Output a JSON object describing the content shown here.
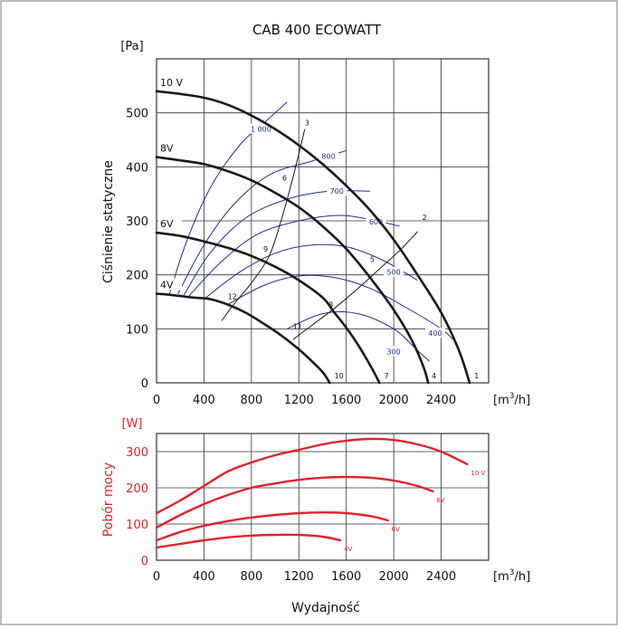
{
  "chart_data": [
    {
      "type": "line",
      "title": "CAB 400 ECOWATT",
      "ylabel": "Ciśnienie statyczne",
      "y_unit": "[Pa]",
      "x_unit_base": "[m",
      "x_unit_sup": "3",
      "x_unit_end": "/h]",
      "xlim": [
        0,
        2800
      ],
      "ylim": [
        0,
        600
      ],
      "x_ticks": [
        "0",
        "400",
        "800",
        "1200",
        "1600",
        "2000",
        "2400"
      ],
      "y_ticks": [
        "0",
        "100",
        "200",
        "300",
        "400",
        "500"
      ],
      "grid": true,
      "fan_curves": [
        {
          "name": "10 V",
          "label_at": [
            0,
            540
          ],
          "points": [
            [
              0,
              540
            ],
            [
              200,
              535
            ],
            [
              400,
              528
            ],
            [
              600,
              515
            ],
            [
              800,
              495
            ],
            [
              1000,
              470
            ],
            [
              1200,
              440
            ],
            [
              1400,
              405
            ],
            [
              1600,
              365
            ],
            [
              1800,
              320
            ],
            [
              2000,
              265
            ],
            [
              2200,
              200
            ],
            [
              2400,
              130
            ],
            [
              2550,
              60
            ],
            [
              2640,
              0
            ]
          ]
        },
        {
          "name": "8V",
          "label_at": [
            0,
            418
          ],
          "points": [
            [
              0,
              418
            ],
            [
              200,
              412
            ],
            [
              400,
              405
            ],
            [
              600,
              392
            ],
            [
              800,
              375
            ],
            [
              1000,
              352
            ],
            [
              1200,
              325
            ],
            [
              1400,
              290
            ],
            [
              1600,
              248
            ],
            [
              1800,
              195
            ],
            [
              2000,
              135
            ],
            [
              2150,
              80
            ],
            [
              2250,
              30
            ],
            [
              2290,
              0
            ]
          ]
        },
        {
          "name": "6V",
          "label_at": [
            0,
            278
          ],
          "points": [
            [
              0,
              278
            ],
            [
              200,
              272
            ],
            [
              400,
              262
            ],
            [
              600,
              250
            ],
            [
              800,
              235
            ],
            [
              1000,
              215
            ],
            [
              1200,
              190
            ],
            [
              1400,
              158
            ],
            [
              1500,
              130
            ],
            [
              1600,
              102
            ],
            [
              1700,
              70
            ],
            [
              1800,
              33
            ],
            [
              1880,
              0
            ]
          ]
        },
        {
          "name": "4V",
          "label_at": [
            0,
            165
          ],
          "points": [
            [
              0,
              165
            ],
            [
              150,
              162
            ],
            [
              300,
              158
            ],
            [
              450,
              155
            ],
            [
              600,
              145
            ],
            [
              750,
              130
            ],
            [
              900,
              110
            ],
            [
              1050,
              88
            ],
            [
              1200,
              62
            ],
            [
              1300,
              42
            ],
            [
              1400,
              20
            ],
            [
              1460,
              0
            ]
          ]
        }
      ],
      "system_curves": [
        {
          "points": [
            [
              550,
              115
            ],
            [
              650,
              145
            ],
            [
              800,
              185
            ],
            [
              950,
              235
            ],
            [
              1050,
              300
            ],
            [
              1150,
              380
            ],
            [
              1250,
              470
            ]
          ]
        },
        {
          "points": [
            [
              1150,
              80
            ],
            [
              1300,
              105
            ],
            [
              1500,
              138
            ],
            [
              1700,
              175
            ],
            [
              1900,
              215
            ],
            [
              2050,
              245
            ],
            [
              2200,
              280
            ]
          ]
        }
      ],
      "points": [
        {
          "label": "1",
          "at": [
            2680,
            8
          ]
        },
        {
          "label": "2",
          "at": [
            2240,
            302
          ]
        },
        {
          "label": "3",
          "at": [
            1250,
            477
          ]
        },
        {
          "label": "4",
          "at": [
            2320,
            8
          ]
        },
        {
          "label": "5",
          "at": [
            1800,
            224
          ]
        },
        {
          "label": "6",
          "at": [
            1060,
            375
          ]
        },
        {
          "label": "7",
          "at": [
            1920,
            8
          ]
        },
        {
          "label": "8",
          "at": [
            1450,
            140
          ]
        },
        {
          "label": "9",
          "at": [
            900,
            243
          ]
        },
        {
          "label": "10",
          "at": [
            1500,
            8
          ]
        },
        {
          "label": "11",
          "at": [
            1150,
            100
          ]
        },
        {
          "label": "12",
          "at": [
            600,
            155
          ]
        }
      ],
      "rpm_curves": [
        {
          "name": "1 000",
          "label_at": [
            880,
            470
          ],
          "points": [
            [
              110,
              165
            ],
            [
              250,
              260
            ],
            [
              450,
              360
            ],
            [
              700,
              440
            ],
            [
              900,
              480
            ],
            [
              1100,
              520
            ]
          ]
        },
        {
          "name": "800",
          "label_at": [
            1450,
            420
          ],
          "points": [
            [
              180,
              165
            ],
            [
              400,
              255
            ],
            [
              650,
              330
            ],
            [
              950,
              385
            ],
            [
              1300,
              410
            ],
            [
              1600,
              430
            ]
          ]
        },
        {
          "name": "700",
          "label_at": [
            1520,
            355
          ],
          "points": [
            [
              230,
              162
            ],
            [
              450,
              240
            ],
            [
              750,
              305
            ],
            [
              1100,
              340
            ],
            [
              1450,
              355
            ],
            [
              1800,
              355
            ]
          ]
        },
        {
          "name": "600",
          "label_at": [
            1850,
            298
          ],
          "points": [
            [
              270,
              160
            ],
            [
              550,
              225
            ],
            [
              850,
              275
            ],
            [
              1200,
              300
            ],
            [
              1550,
              310
            ],
            [
              1850,
              300
            ],
            [
              2050,
              290
            ]
          ]
        },
        {
          "name": "500",
          "label_at": [
            2000,
            205
          ],
          "points": [
            [
              400,
              155
            ],
            [
              700,
              205
            ],
            [
              1000,
              240
            ],
            [
              1300,
              255
            ],
            [
              1600,
              252
            ],
            [
              1900,
              228
            ],
            [
              2200,
              190
            ]
          ]
        },
        {
          "name": "400",
          "label_at": [
            2350,
            92
          ],
          "points": [
            [
              600,
              145
            ],
            [
              900,
              180
            ],
            [
              1200,
              198
            ],
            [
              1500,
              195
            ],
            [
              1800,
              175
            ],
            [
              2100,
              140
            ],
            [
              2400,
              100
            ],
            [
              2500,
              80
            ]
          ]
        },
        {
          "name": "300",
          "label_at": [
            2000,
            58
          ],
          "points": [
            [
              1100,
              100
            ],
            [
              1400,
              128
            ],
            [
              1700,
              128
            ],
            [
              2000,
              100
            ],
            [
              2200,
              60
            ],
            [
              2300,
              40
            ]
          ]
        }
      ]
    },
    {
      "type": "line",
      "ylabel": "Pobór mocy",
      "y_unit": "[W]",
      "x_unit_base": "[m",
      "x_unit_sup": "3",
      "x_unit_end": "/h]",
      "xlabel": "Wydajność",
      "xlim": [
        0,
        2800
      ],
      "ylim": [
        0,
        350
      ],
      "x_ticks": [
        "0",
        "400",
        "800",
        "1200",
        "1600",
        "2000",
        "2400"
      ],
      "y_ticks": [
        "0",
        "100",
        "200",
        "300"
      ],
      "grid": true,
      "series": [
        {
          "name": "10 V",
          "points": [
            [
              0,
              130
            ],
            [
              200,
              165
            ],
            [
              400,
              205
            ],
            [
              600,
              245
            ],
            [
              800,
              270
            ],
            [
              1000,
              290
            ],
            [
              1200,
              305
            ],
            [
              1400,
              320
            ],
            [
              1600,
              330
            ],
            [
              1800,
              335
            ],
            [
              2000,
              332
            ],
            [
              2200,
              320
            ],
            [
              2400,
              300
            ],
            [
              2620,
              265
            ]
          ]
        },
        {
          "name": "8V",
          "points": [
            [
              0,
              90
            ],
            [
              200,
              125
            ],
            [
              400,
              155
            ],
            [
              600,
              180
            ],
            [
              800,
              200
            ],
            [
              1000,
              212
            ],
            [
              1200,
              222
            ],
            [
              1400,
              228
            ],
            [
              1600,
              230
            ],
            [
              1800,
              228
            ],
            [
              2000,
              220
            ],
            [
              2200,
              205
            ],
            [
              2330,
              190
            ]
          ]
        },
        {
          "name": "6V",
          "points": [
            [
              0,
              55
            ],
            [
              200,
              78
            ],
            [
              400,
              95
            ],
            [
              600,
              108
            ],
            [
              800,
              118
            ],
            [
              1000,
              125
            ],
            [
              1200,
              130
            ],
            [
              1400,
              132
            ],
            [
              1600,
              130
            ],
            [
              1800,
              122
            ],
            [
              1950,
              110
            ]
          ]
        },
        {
          "name": "4V",
          "points": [
            [
              0,
              35
            ],
            [
              200,
              45
            ],
            [
              400,
              55
            ],
            [
              600,
              63
            ],
            [
              800,
              68
            ],
            [
              1000,
              70
            ],
            [
              1200,
              70
            ],
            [
              1400,
              65
            ],
            [
              1550,
              55
            ]
          ]
        }
      ]
    }
  ],
  "colors": {
    "fan": "#1a1a1a",
    "rpm": "#1f2f8c",
    "power": "#e1232b",
    "grid": "#333333"
  }
}
